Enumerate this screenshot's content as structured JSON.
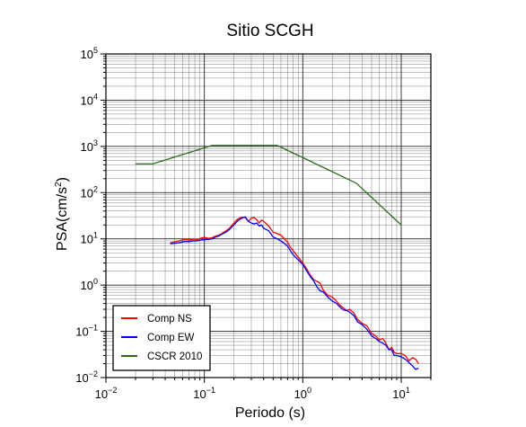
{
  "chart_data": {
    "type": "line",
    "title": "Sitio SCGH",
    "xlabel": "Periodo (s)",
    "ylabel_base": "PSA(cm/s",
    "ylabel_sup": "2",
    "ylabel_tail": ")",
    "xscale": "log",
    "yscale": "log",
    "xlim": [
      0.01,
      20
    ],
    "ylim": [
      0.01,
      100000
    ],
    "grid": true,
    "legend_position": "bottom-left",
    "x_ticks": [
      {
        "base": "10",
        "exp": "−2"
      },
      {
        "base": "10",
        "exp": "−1"
      },
      {
        "base": "10",
        "exp": "0"
      },
      {
        "base": "10",
        "exp": "1"
      }
    ],
    "y_ticks": [
      {
        "base": "10",
        "exp": "−2"
      },
      {
        "base": "10",
        "exp": "−1"
      },
      {
        "base": "10",
        "exp": "0"
      },
      {
        "base": "10",
        "exp": "1"
      },
      {
        "base": "10",
        "exp": "2"
      },
      {
        "base": "10",
        "exp": "3"
      },
      {
        "base": "10",
        "exp": "4"
      },
      {
        "base": "10",
        "exp": "5"
      }
    ],
    "series": [
      {
        "name": "Comp NS",
        "color": "#ff0000",
        "x": [
          0.045,
          0.05,
          0.055,
          0.06,
          0.065,
          0.07,
          0.075,
          0.08,
          0.085,
          0.09,
          0.1,
          0.11,
          0.12,
          0.13,
          0.14,
          0.15,
          0.16,
          0.17,
          0.18,
          0.19,
          0.2,
          0.21,
          0.22,
          0.24,
          0.26,
          0.28,
          0.3,
          0.32,
          0.34,
          0.36,
          0.38,
          0.4,
          0.45,
          0.5,
          0.55,
          0.6,
          0.65,
          0.7,
          0.75,
          0.8,
          0.9,
          1.0,
          1.1,
          1.2,
          1.3,
          1.4,
          1.5,
          1.6,
          1.8,
          2.0,
          2.2,
          2.4,
          2.6,
          2.8,
          3.0,
          3.3,
          3.6,
          4.0,
          4.5,
          5.0,
          5.5,
          6.0,
          6.5,
          7.0,
          7.5,
          8.0,
          8.5,
          9.0,
          10.0,
          11.0,
          12.0,
          13.0,
          14.0,
          15.0
        ],
        "y": [
          8.2,
          8.6,
          9.0,
          9.5,
          9.7,
          9.4,
          9.7,
          9.9,
          9.6,
          10.2,
          10.8,
          10.2,
          10.6,
          11.5,
          12.0,
          13.0,
          14.2,
          15.5,
          17.0,
          19.5,
          22.0,
          25.0,
          27.0,
          29.5,
          29.0,
          24.0,
          28.0,
          29.0,
          26.0,
          22.0,
          25.5,
          24.0,
          19.0,
          14.0,
          13.0,
          12.0,
          10.0,
          8.5,
          6.5,
          5.5,
          4.0,
          3.0,
          2.2,
          1.6,
          1.3,
          1.2,
          1.1,
          0.8,
          0.6,
          0.55,
          0.45,
          0.36,
          0.32,
          0.28,
          0.3,
          0.25,
          0.18,
          0.15,
          0.13,
          0.09,
          0.08,
          0.065,
          0.07,
          0.055,
          0.04,
          0.045,
          0.035,
          0.033,
          0.033,
          0.03,
          0.023,
          0.027,
          0.025,
          0.02
        ]
      },
      {
        "name": "Comp EW",
        "color": "#0000ff",
        "x": [
          0.045,
          0.05,
          0.055,
          0.06,
          0.065,
          0.07,
          0.075,
          0.08,
          0.085,
          0.09,
          0.1,
          0.11,
          0.12,
          0.13,
          0.14,
          0.15,
          0.16,
          0.17,
          0.18,
          0.19,
          0.2,
          0.21,
          0.22,
          0.24,
          0.26,
          0.28,
          0.3,
          0.32,
          0.34,
          0.36,
          0.38,
          0.4,
          0.45,
          0.5,
          0.55,
          0.6,
          0.65,
          0.7,
          0.75,
          0.8,
          0.9,
          1.0,
          1.1,
          1.2,
          1.3,
          1.4,
          1.5,
          1.6,
          1.8,
          2.0,
          2.2,
          2.4,
          2.6,
          2.8,
          3.0,
          3.3,
          3.6,
          4.0,
          4.5,
          5.0,
          5.5,
          6.0,
          6.5,
          7.0,
          7.5,
          8.0,
          8.5,
          9.0,
          10.0,
          11.0,
          12.0,
          13.0,
          14.0,
          15.0
        ],
        "y": [
          7.8,
          8.0,
          8.2,
          8.6,
          8.8,
          8.7,
          9.0,
          9.1,
          9.0,
          9.4,
          9.6,
          9.8,
          10.0,
          11.0,
          11.5,
          12.5,
          13.5,
          14.5,
          16.0,
          18.0,
          20.0,
          22.5,
          25.0,
          28.0,
          30.0,
          24.0,
          22.0,
          21.0,
          22.0,
          19.0,
          20.0,
          17.0,
          15.0,
          11.0,
          10.0,
          9.0,
          8.0,
          7.0,
          5.5,
          4.5,
          3.5,
          2.8,
          2.0,
          1.5,
          1.2,
          0.9,
          0.75,
          0.72,
          0.55,
          0.45,
          0.4,
          0.33,
          0.29,
          0.28,
          0.26,
          0.22,
          0.16,
          0.14,
          0.11,
          0.08,
          0.07,
          0.06,
          0.055,
          0.05,
          0.04,
          0.04,
          0.03,
          0.03,
          0.028,
          0.025,
          0.021,
          0.018,
          0.015,
          0.016
        ]
      },
      {
        "name": "CSCR 2010",
        "color": "#2e6b1e",
        "x": [
          0.02,
          0.03,
          0.12,
          0.55,
          3.5,
          10.0
        ],
        "y": [
          420,
          420,
          1050,
          1050,
          160,
          20
        ]
      }
    ]
  }
}
